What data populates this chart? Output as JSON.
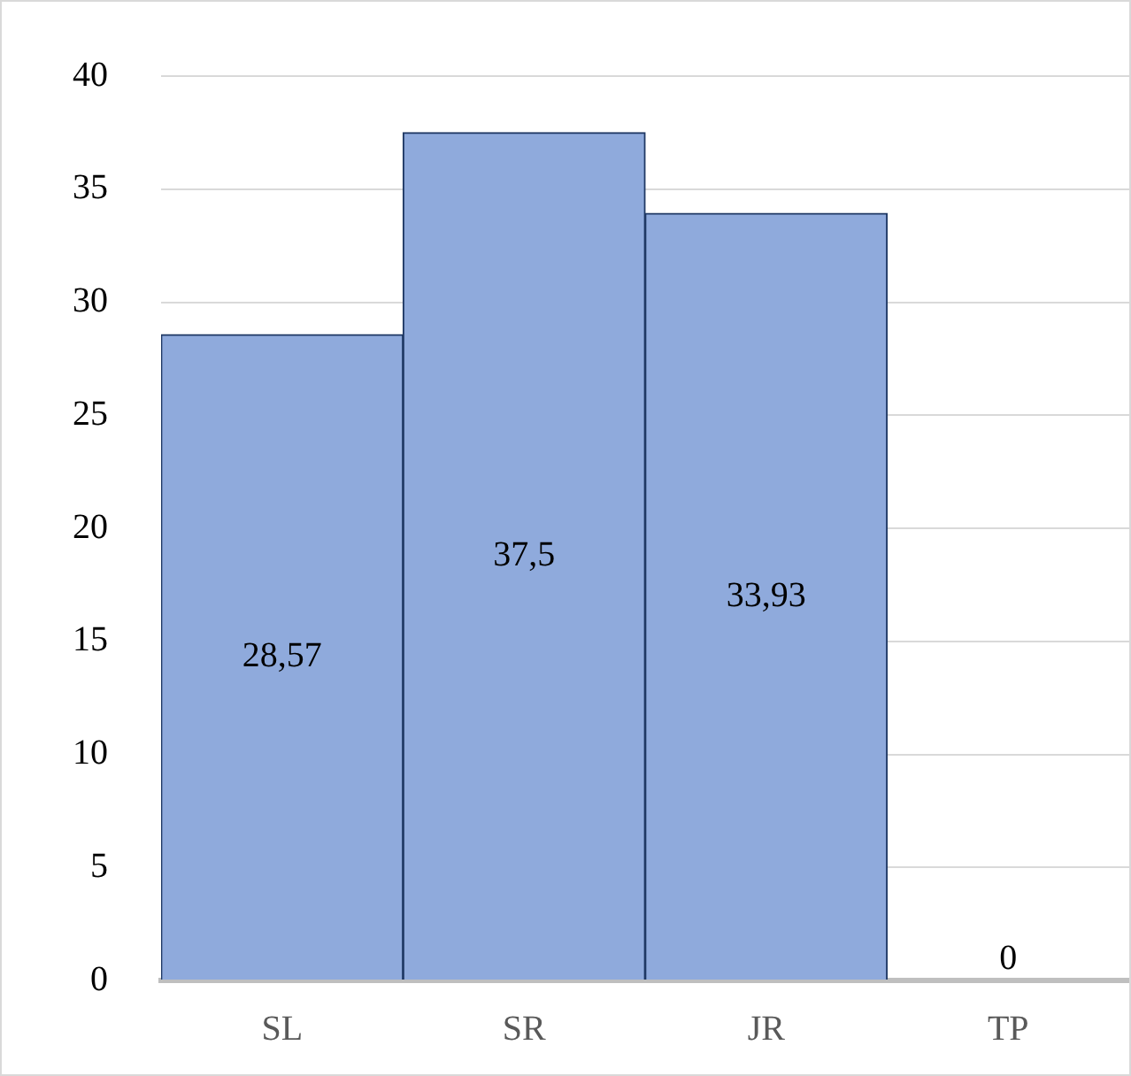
{
  "chart_data": {
    "type": "bar",
    "categories": [
      "SL",
      "SR",
      "JR",
      "TP"
    ],
    "values": [
      28.57,
      37.5,
      33.93,
      0
    ],
    "value_labels": [
      "28,57",
      "37,5",
      "33,93",
      "0"
    ],
    "color": "#8faadc",
    "ylim": [
      0,
      40
    ],
    "yticks": [
      0,
      5,
      10,
      15,
      20,
      25,
      30,
      35,
      40
    ],
    "grid": "y",
    "legend": false
  }
}
